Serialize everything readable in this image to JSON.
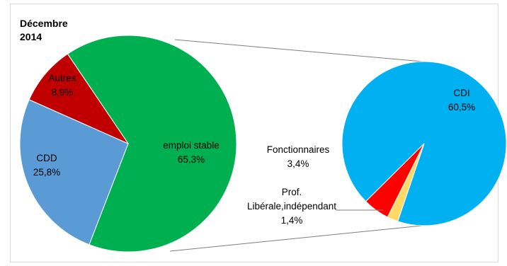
{
  "chart_data": {
    "type": "pie",
    "title": "Décembre\n2014",
    "main_pie": {
      "slices": [
        {
          "label": "emploi stable",
          "value": 65.3,
          "value_label": "65,3%",
          "color": "#00b050"
        },
        {
          "label": "CDD",
          "value": 25.8,
          "value_label": "25,8%",
          "color": "#5b9bd5"
        },
        {
          "label": "Autres",
          "value": 8.9,
          "value_label": "8,9%",
          "color": "#c00000"
        }
      ]
    },
    "breakdown_pie": {
      "of": "emploi stable",
      "slices": [
        {
          "label": "CDI",
          "value": 60.5,
          "value_label": "60,5%",
          "color": "#00b0f0"
        },
        {
          "label": "Fonctionnaires",
          "value": 3.4,
          "value_label": "3,4%",
          "color": "#ff0000"
        },
        {
          "label": "Prof. Libérale,indépendant",
          "label_lines": [
            "Prof.",
            "Libérale,indépendant"
          ],
          "value": 1.4,
          "value_label": "1,4%",
          "color": "#ffd966"
        }
      ]
    }
  }
}
